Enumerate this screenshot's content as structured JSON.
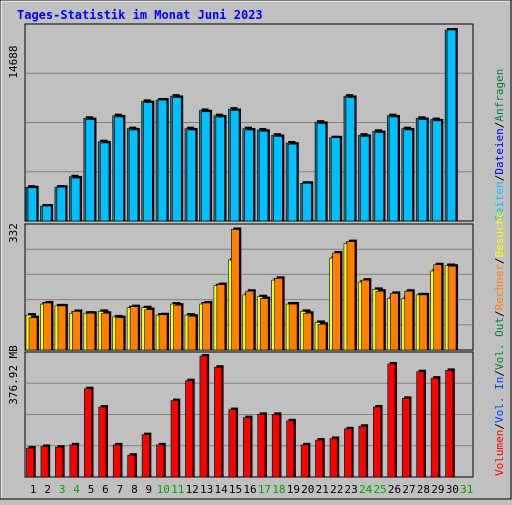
{
  "title": "Tages-Statistik im Monat Juni 2023",
  "colors": {
    "background": "#c0c0c0",
    "grid": "#808080",
    "title": "#0000ff",
    "hits": "#008040",
    "files": "#0000ff",
    "pages": "#00c0ff",
    "visits": "#ffff00",
    "sites": "#ff8000",
    "kbytes": "#ff0000",
    "weekend": "#00a000",
    "weekday": "#000000"
  },
  "legend_right": {
    "anfragen": "Anfragen",
    "dateien": "Dateien",
    "seiten": "Seiten",
    "besuche": "Besuche",
    "rechner": "Rechner",
    "vol_out": "Vol. Out",
    "vol_in": "Vol. In",
    "volumen": "Volumen",
    "sep": "/"
  },
  "chart_data": [
    {
      "type": "bar",
      "title": "Tages-Statistik im Monat Juni 2023",
      "ylabel": "14688",
      "ylim": [
        0,
        14688
      ],
      "grid": true,
      "categories": [
        "1",
        "2",
        "3",
        "4",
        "5",
        "6",
        "7",
        "8",
        "9",
        "10",
        "11",
        "12",
        "13",
        "14",
        "15",
        "16",
        "17",
        "18",
        "19",
        "20",
        "21",
        "22",
        "23",
        "24",
        "25",
        "26",
        "27",
        "28",
        "29",
        "30",
        "31"
      ],
      "series": [
        {
          "name": "Anfragen",
          "values": [
            2600,
            1150,
            2600,
            3400,
            7900,
            6100,
            8100,
            7100,
            9200,
            9300,
            9600,
            7100,
            8500,
            8100,
            8600,
            7100,
            7000,
            6600,
            6000,
            2900,
            7600,
            6400,
            9600,
            6600,
            6900,
            8100,
            7100,
            7900,
            7800,
            14688,
            null
          ]
        },
        {
          "name": "Dateien",
          "values": [
            2550,
            1150,
            2600,
            3300,
            7800,
            6000,
            8000,
            7000,
            9100,
            9300,
            9500,
            7000,
            8400,
            8000,
            8500,
            7000,
            6900,
            6500,
            5900,
            2900,
            7500,
            6400,
            9500,
            6500,
            6800,
            8000,
            7000,
            7800,
            7700,
            14688,
            null
          ]
        },
        {
          "name": "Seiten",
          "values": [
            null,
            null,
            null,
            null,
            null,
            null,
            null,
            null,
            null,
            null,
            null,
            null,
            null,
            null,
            null,
            null,
            null,
            null,
            null,
            null,
            null,
            null,
            null,
            null,
            null,
            null,
            null,
            null,
            null,
            null,
            null
          ]
        }
      ]
    },
    {
      "type": "bar",
      "ylabel": "332",
      "ylim": [
        0,
        332
      ],
      "grid": true,
      "categories": [
        "1",
        "2",
        "3",
        "4",
        "5",
        "6",
        "7",
        "8",
        "9",
        "10",
        "11",
        "12",
        "13",
        "14",
        "15",
        "16",
        "17",
        "18",
        "19",
        "20",
        "21",
        "22",
        "23",
        "24",
        "25",
        "26",
        "27",
        "28",
        "29",
        "30",
        "31"
      ],
      "series": [
        {
          "name": "Besuche",
          "values": [
            95,
            125,
            120,
            100,
            100,
            105,
            90,
            115,
            115,
            95,
            125,
            95,
            125,
            175,
            245,
            150,
            145,
            190,
            125,
            105,
            75,
            250,
            290,
            185,
            165,
            140,
            140,
            150,
            215,
            230,
            null
          ]
        },
        {
          "name": "Rechner",
          "values": [
            88,
            128,
            120,
            105,
            100,
            100,
            88,
            118,
            110,
            96,
            122,
            92,
            128,
            178,
            328,
            160,
            140,
            195,
            125,
            100,
            70,
            264,
            295,
            190,
            160,
            154,
            160,
            150,
            232,
            228,
            null
          ]
        }
      ]
    },
    {
      "type": "bar",
      "ylabel": "376.92 MB",
      "ylim": [
        0,
        376.92
      ],
      "unit": "MB",
      "grid": true,
      "categories": [
        "1",
        "2",
        "3",
        "4",
        "5",
        "6",
        "7",
        "8",
        "9",
        "10",
        "11",
        "12",
        "13",
        "14",
        "15",
        "16",
        "17",
        "18",
        "19",
        "20",
        "21",
        "22",
        "23",
        "24",
        "25",
        "26",
        "27",
        "28",
        "29",
        "30",
        "31"
      ],
      "series": [
        {
          "name": "Volumen",
          "values": [
            90,
            95,
            93,
            100,
            275,
            218,
            100,
            68,
            132,
            100,
            238,
            300,
            376.92,
            342,
            210,
            185,
            195,
            195,
            175,
            100,
            115,
            120,
            150,
            158,
            218,
            352,
            245,
            328,
            308,
            332,
            null
          ]
        }
      ]
    }
  ],
  "weekend_days": [
    3,
    4,
    10,
    11,
    17,
    18,
    24,
    25,
    31
  ]
}
